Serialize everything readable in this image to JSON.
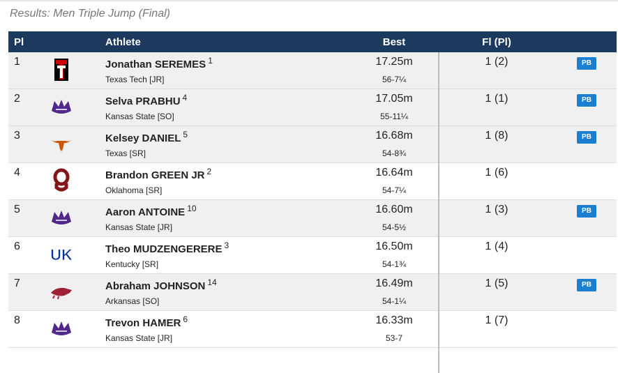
{
  "header": {
    "title": "Results: Men Triple Jump (Final)"
  },
  "table": {
    "columns": [
      "Pl",
      "Athlete",
      "Best",
      "Fl (Pl)"
    ],
    "rows": [
      {
        "place": "1",
        "name": "Jonathan SEREMES",
        "seed": "1",
        "team": "Texas Tech [JR]",
        "mark": "17.25m",
        "imperial": "56-7¼",
        "flight": "1 (2)",
        "badge": "PB"
      },
      {
        "place": "2",
        "name": "Selva PRABHU",
        "seed": "4",
        "team": "Kansas State [SO]",
        "mark": "17.05m",
        "imperial": "55-11¼",
        "flight": "1 (1)",
        "badge": "PB"
      },
      {
        "place": "3",
        "name": "Kelsey DANIEL",
        "seed": "5",
        "team": "Texas [SR]",
        "mark": "16.68m",
        "imperial": "54-8¾",
        "flight": "1 (8)",
        "badge": "PB"
      },
      {
        "place": "4",
        "name": "Brandon GREEN JR",
        "seed": "2",
        "team": "Oklahoma [SR]",
        "mark": "16.64m",
        "imperial": "54-7¼",
        "flight": "1 (6)",
        "badge": null
      },
      {
        "place": "5",
        "name": "Aaron ANTOINE",
        "seed": "10",
        "team": "Kansas State [JR]",
        "mark": "16.60m",
        "imperial": "54-5½",
        "flight": "1 (3)",
        "badge": "PB"
      },
      {
        "place": "6",
        "name": "Theo MUDZENGERERE",
        "seed": "3",
        "team": "Kentucky [SR]",
        "mark": "16.50m",
        "imperial": "54-1¾",
        "flight": "1 (4)",
        "badge": null
      },
      {
        "place": "7",
        "name": "Abraham JOHNSON",
        "seed": "14",
        "team": "Arkansas [SO]",
        "mark": "16.49m",
        "imperial": "54-1¼",
        "flight": "1 (5)",
        "badge": "PB"
      },
      {
        "place": "8",
        "name": "Trevon HAMER",
        "seed": "6",
        "team": "Kansas State [JR]",
        "mark": "16.33m",
        "imperial": "53-7",
        "flight": "1 (7)",
        "badge": null
      }
    ]
  }
}
